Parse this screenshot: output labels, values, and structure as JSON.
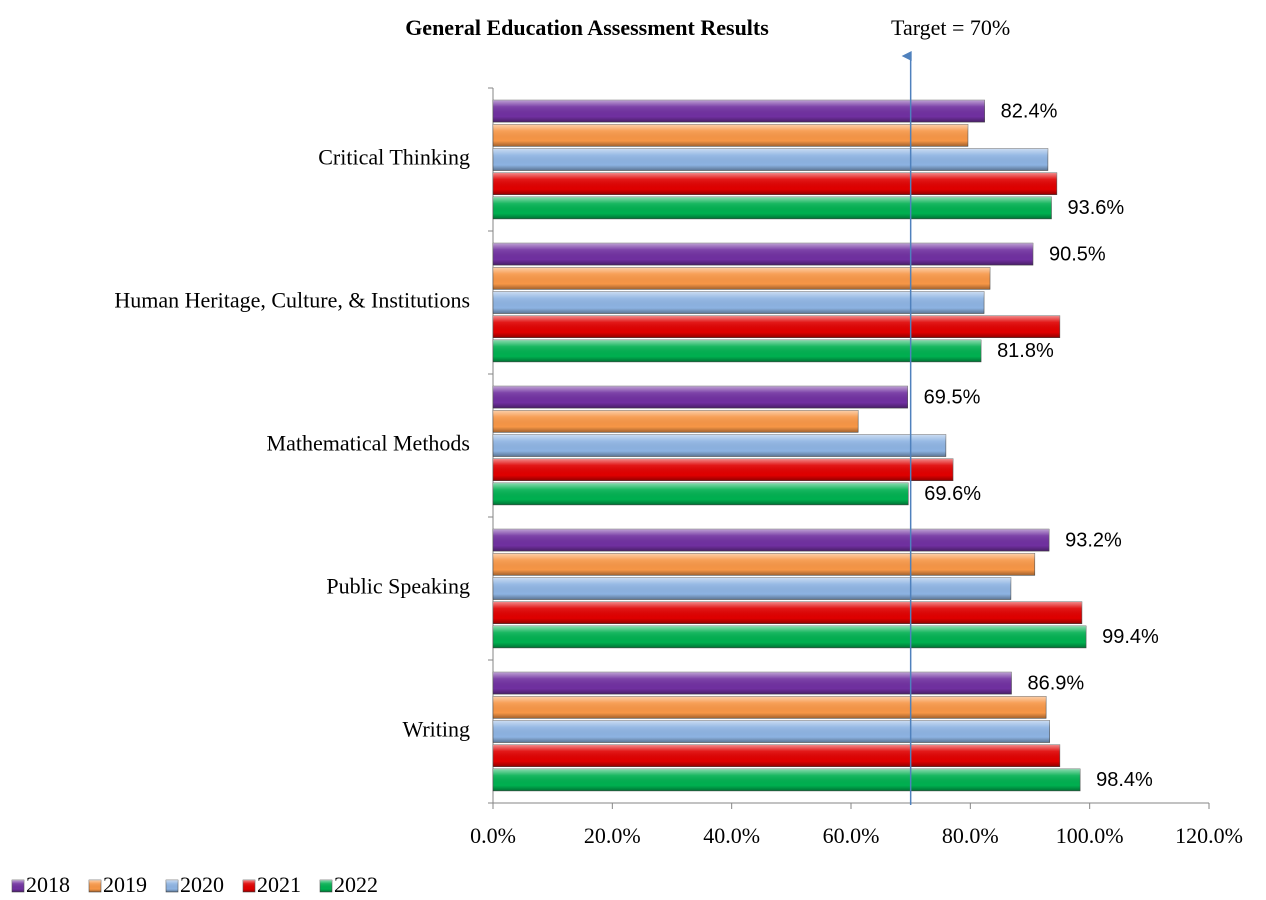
{
  "chart_data": {
    "type": "bar",
    "orientation": "horizontal",
    "title": "General Education Assessment Results",
    "categories": [
      "Critical Thinking",
      "Human Heritage, Culture, & Institutions",
      "Mathematical Methods",
      "Public Speaking",
      "Writing"
    ],
    "series": [
      {
        "name": "2018",
        "color": "#7030a0",
        "values": [
          82.4,
          90.5,
          69.5,
          93.2,
          86.9
        ],
        "value_labels": [
          "82.4%",
          "90.5%",
          "69.5%",
          "93.2%",
          "86.9%"
        ]
      },
      {
        "name": "2019",
        "color": "#f79646",
        "values": [
          79.6,
          83.3,
          61.2,
          90.8,
          92.7
        ]
      },
      {
        "name": "2020",
        "color": "#8db3e2",
        "values": [
          93.0,
          82.3,
          75.9,
          86.8,
          93.3
        ]
      },
      {
        "name": "2021",
        "color": "#e00000",
        "values": [
          94.5,
          95.0,
          77.1,
          98.7,
          95.0
        ]
      },
      {
        "name": "2022",
        "color": "#00b050",
        "values": [
          93.6,
          81.8,
          69.6,
          99.4,
          98.4
        ],
        "value_labels": [
          "93.6%",
          "81.8%",
          "69.6%",
          "99.4%",
          "98.4%"
        ]
      }
    ],
    "xlim": [
      0,
      120
    ],
    "xticks": [
      {
        "value": 0,
        "label": "0.0%"
      },
      {
        "value": 20,
        "label": "20.0%"
      },
      {
        "value": 40,
        "label": "40.0%"
      },
      {
        "value": 60,
        "label": "60.0%"
      },
      {
        "value": 80,
        "label": "80.0%"
      },
      {
        "value": 100,
        "label": "100.0%"
      },
      {
        "value": 120,
        "label": "120.0%"
      }
    ],
    "target": {
      "value": 70,
      "label": "Target = 70%"
    },
    "legend": "bottom-left",
    "grid": false
  }
}
